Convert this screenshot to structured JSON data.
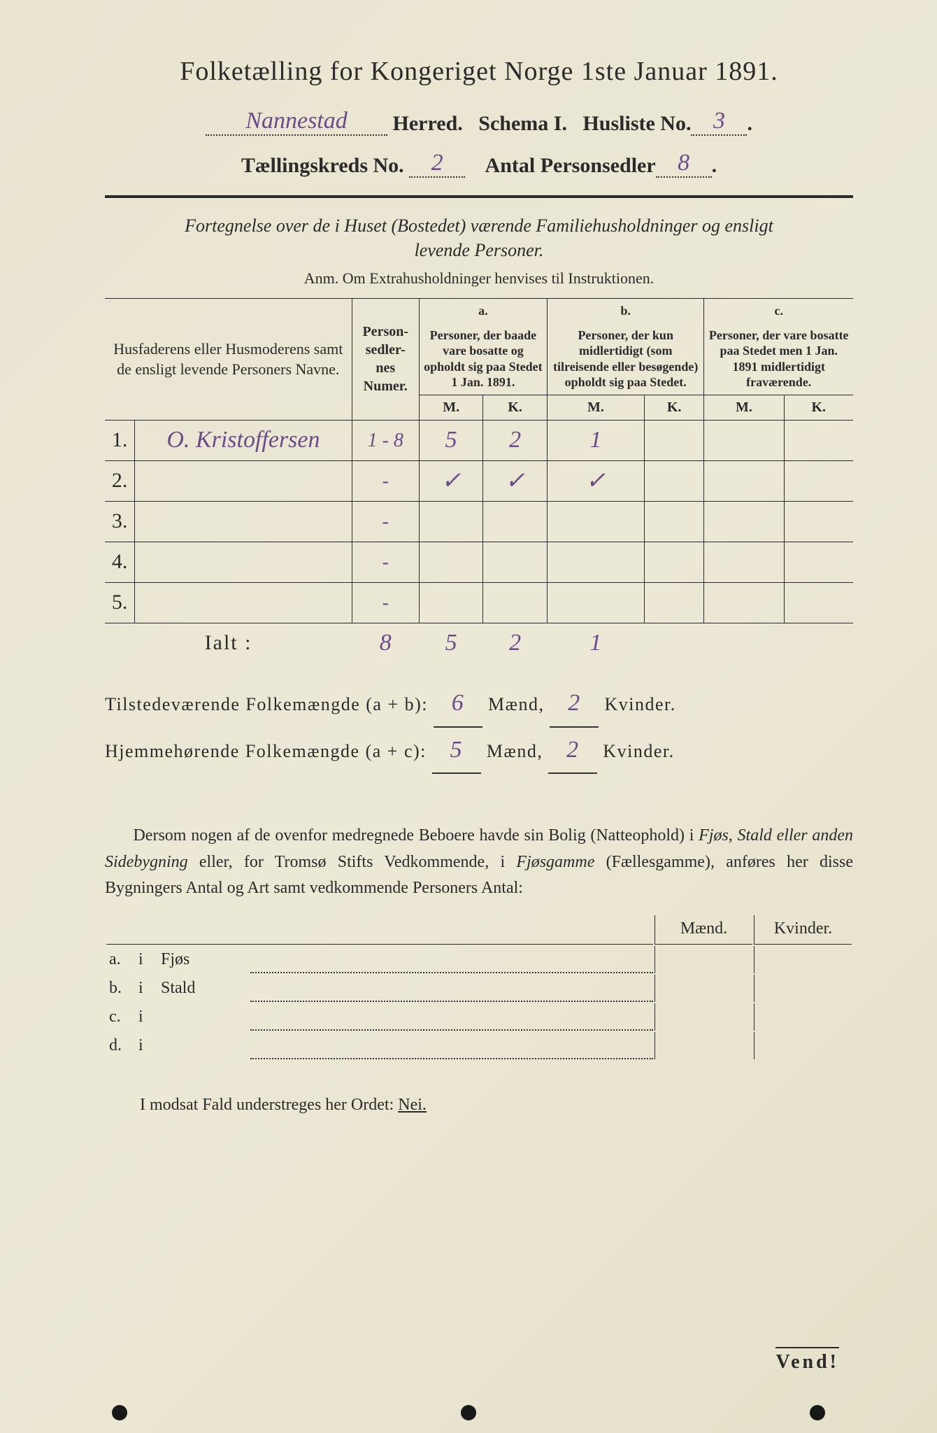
{
  "header": {
    "title": "Folketælling for Kongeriget Norge 1ste Januar 1891.",
    "herred_value": "Nannestad",
    "herred_label": "Herred.",
    "schema_label": "Schema I.",
    "husliste_label": "Husliste No.",
    "husliste_value": "3",
    "kreds_label": "Tællingskreds No.",
    "kreds_value": "2",
    "antal_label": "Antal Personsedler",
    "antal_value": "8"
  },
  "fortegnelse": {
    "line1": "Fortegnelse over de i Huset (Bostedet) værende Familiehusholdninger og ensligt",
    "line2": "levende Personer.",
    "anm": "Anm.  Om Extrahusholdninger henvises til Instruktionen."
  },
  "table": {
    "col_names": "Husfaderens eller Husmoderens samt de ensligt levende Personers Navne.",
    "col_num": "Person-sedler-nes Numer.",
    "col_a_label": "a.",
    "col_a": "Personer, der baade vare bosatte og opholdt sig paa Stedet 1 Jan. 1891.",
    "col_b_label": "b.",
    "col_b": "Personer, der kun midlertidigt (som tilreisende eller besøgende) opholdt sig paa Stedet.",
    "col_c_label": "c.",
    "col_c": "Personer, der vare bosatte paa Stedet men 1 Jan. 1891 midlertidigt fraværende.",
    "m": "M.",
    "k": "K.",
    "rows": [
      {
        "idx": "1.",
        "name": "O. Kristoffersen",
        "num": "1 - 8",
        "am": "5",
        "ak": "2",
        "bm": "1",
        "bk": "",
        "cm": "",
        "ck": ""
      },
      {
        "idx": "2.",
        "name": "",
        "num": "-",
        "am": "✓",
        "ak": "✓",
        "bm": "✓",
        "bk": "",
        "cm": "",
        "ck": ""
      },
      {
        "idx": "3.",
        "name": "",
        "num": "-",
        "am": "",
        "ak": "",
        "bm": "",
        "bk": "",
        "cm": "",
        "ck": ""
      },
      {
        "idx": "4.",
        "name": "",
        "num": "-",
        "am": "",
        "ak": "",
        "bm": "",
        "bk": "",
        "cm": "",
        "ck": ""
      },
      {
        "idx": "5.",
        "name": "",
        "num": "-",
        "am": "",
        "ak": "",
        "bm": "",
        "bk": "",
        "cm": "",
        "ck": ""
      }
    ],
    "ialt_label": "Ialt :",
    "ialt": {
      "num": "8",
      "am": "5",
      "ak": "2",
      "bm": "1"
    }
  },
  "summary": {
    "tilstede_label": "Tilstedeværende Folkemængde (a + b):",
    "tilstede_m": "6",
    "tilstede_k": "2",
    "hjemme_label": "Hjemmehørende Folkemængde (a + c):",
    "hjemme_m": "5",
    "hjemme_k": "2",
    "maend": "Mænd,",
    "kvinder": "Kvinder."
  },
  "para": {
    "text1": "Dersom nogen af de ovenfor medregnede Beboere havde sin Bolig (Natteophold) i ",
    "ital1": "Fjøs, Stald eller anden Sidebygning",
    "text2": " eller, for Tromsø Stifts Vedkommende, i ",
    "ital2": "Fjøsgamme",
    "text3": " (Fællesgamme), anføres her disse Bygningers Antal og Art samt vedkommende Personers Antal:"
  },
  "side": {
    "maend": "Mænd.",
    "kvinder": "Kvinder.",
    "items": [
      {
        "letter": "a.",
        "i": "i",
        "label": "Fjøs"
      },
      {
        "letter": "b.",
        "i": "i",
        "label": "Stald"
      },
      {
        "letter": "c.",
        "i": "i",
        "label": ""
      },
      {
        "letter": "d.",
        "i": "i",
        "label": ""
      }
    ]
  },
  "modsat": {
    "text": "I modsat Fald understreges her Ordet: ",
    "nei": "Nei."
  },
  "vend": "Vend!"
}
